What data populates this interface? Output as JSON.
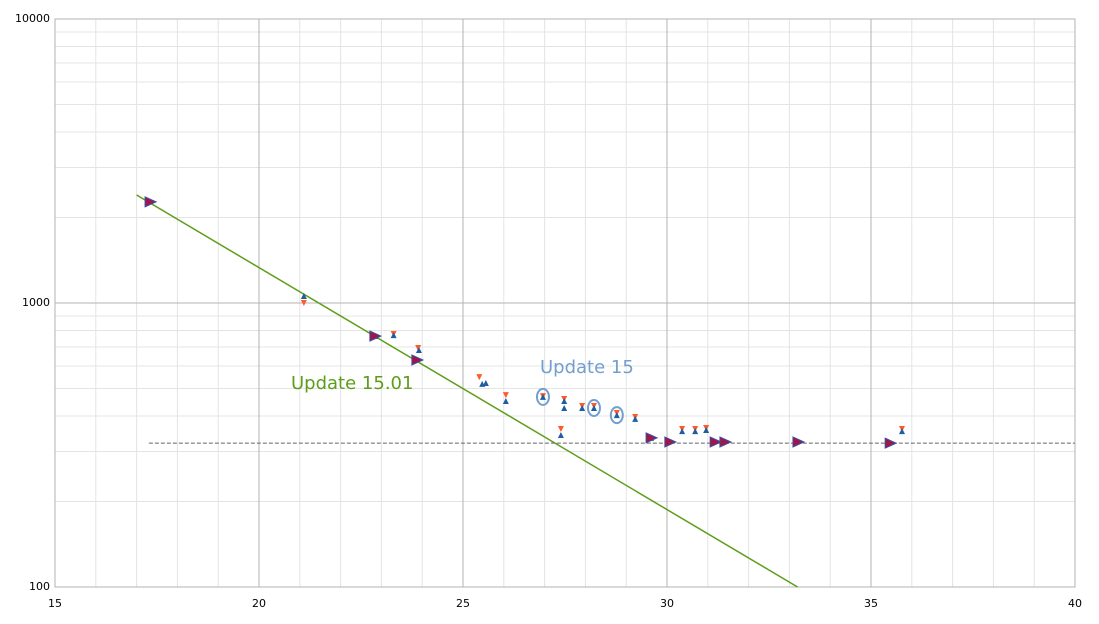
{
  "chart_data": {
    "type": "scatter",
    "log_y": true,
    "grid": true,
    "minor_grid": true,
    "xlim": [
      15,
      40
    ],
    "xticks": [
      15,
      20,
      25,
      30,
      35,
      40
    ],
    "ylim": [
      100,
      10000
    ],
    "yticks": [
      100,
      1000,
      10000
    ],
    "annotations": [
      {
        "text": "Update 15.01",
        "color": "#5c9e1a"
      },
      {
        "text": "Update 15",
        "color": "#729fcf"
      }
    ],
    "series": [
      {
        "marker": "line",
        "color": "#5c9e1a",
        "x": [
          17.0,
          33.2
        ],
        "values": [
          2400,
          100
        ]
      },
      {
        "marker": "dashed",
        "color": "#666666",
        "x": [
          17.3,
          40
        ],
        "values": [
          321,
          321
        ]
      },
      {
        "marker": "triangle-down",
        "color": "#ff5a2a",
        "x": [
          21.1,
          23.3,
          23.9,
          25.4,
          26.05,
          26.96,
          27.4,
          27.48,
          27.92,
          28.21,
          28.77,
          29.22,
          30.37,
          30.69,
          30.96,
          35.76
        ],
        "values": [
          1000,
          778,
          694,
          548,
          474,
          470,
          360,
          459,
          434,
          434,
          410,
          397,
          360,
          360,
          363,
          360
        ]
      },
      {
        "marker": "triangle-up",
        "color": "#1f5fa0",
        "x": [
          21.1,
          22.84,
          23.3,
          23.92,
          25.47,
          25.56,
          26.05,
          26.96,
          27.4,
          27.48,
          27.48,
          27.92,
          28.21,
          28.77,
          29.22,
          29.61,
          30.37,
          30.69,
          30.96,
          35.76
        ],
        "values": [
          1058,
          765,
          771,
          683,
          519,
          523,
          452,
          467,
          343,
          427,
          452,
          427,
          427,
          403,
          391,
          335,
          354,
          354,
          357,
          354
        ]
      },
      {
        "marker": "triangle-right",
        "color": "#a0154a",
        "x": [
          17.33,
          22.84,
          23.87,
          29.61,
          30.07,
          31.18,
          31.42,
          33.21,
          35.47
        ],
        "values": [
          2270,
          765,
          630,
          335,
          324,
          324,
          324,
          324,
          321
        ]
      },
      {
        "marker": "ring",
        "color": "#729fcf",
        "x": [
          26.96,
          28.21,
          28.77
        ],
        "values": [
          467,
          427,
          403
        ]
      }
    ]
  }
}
